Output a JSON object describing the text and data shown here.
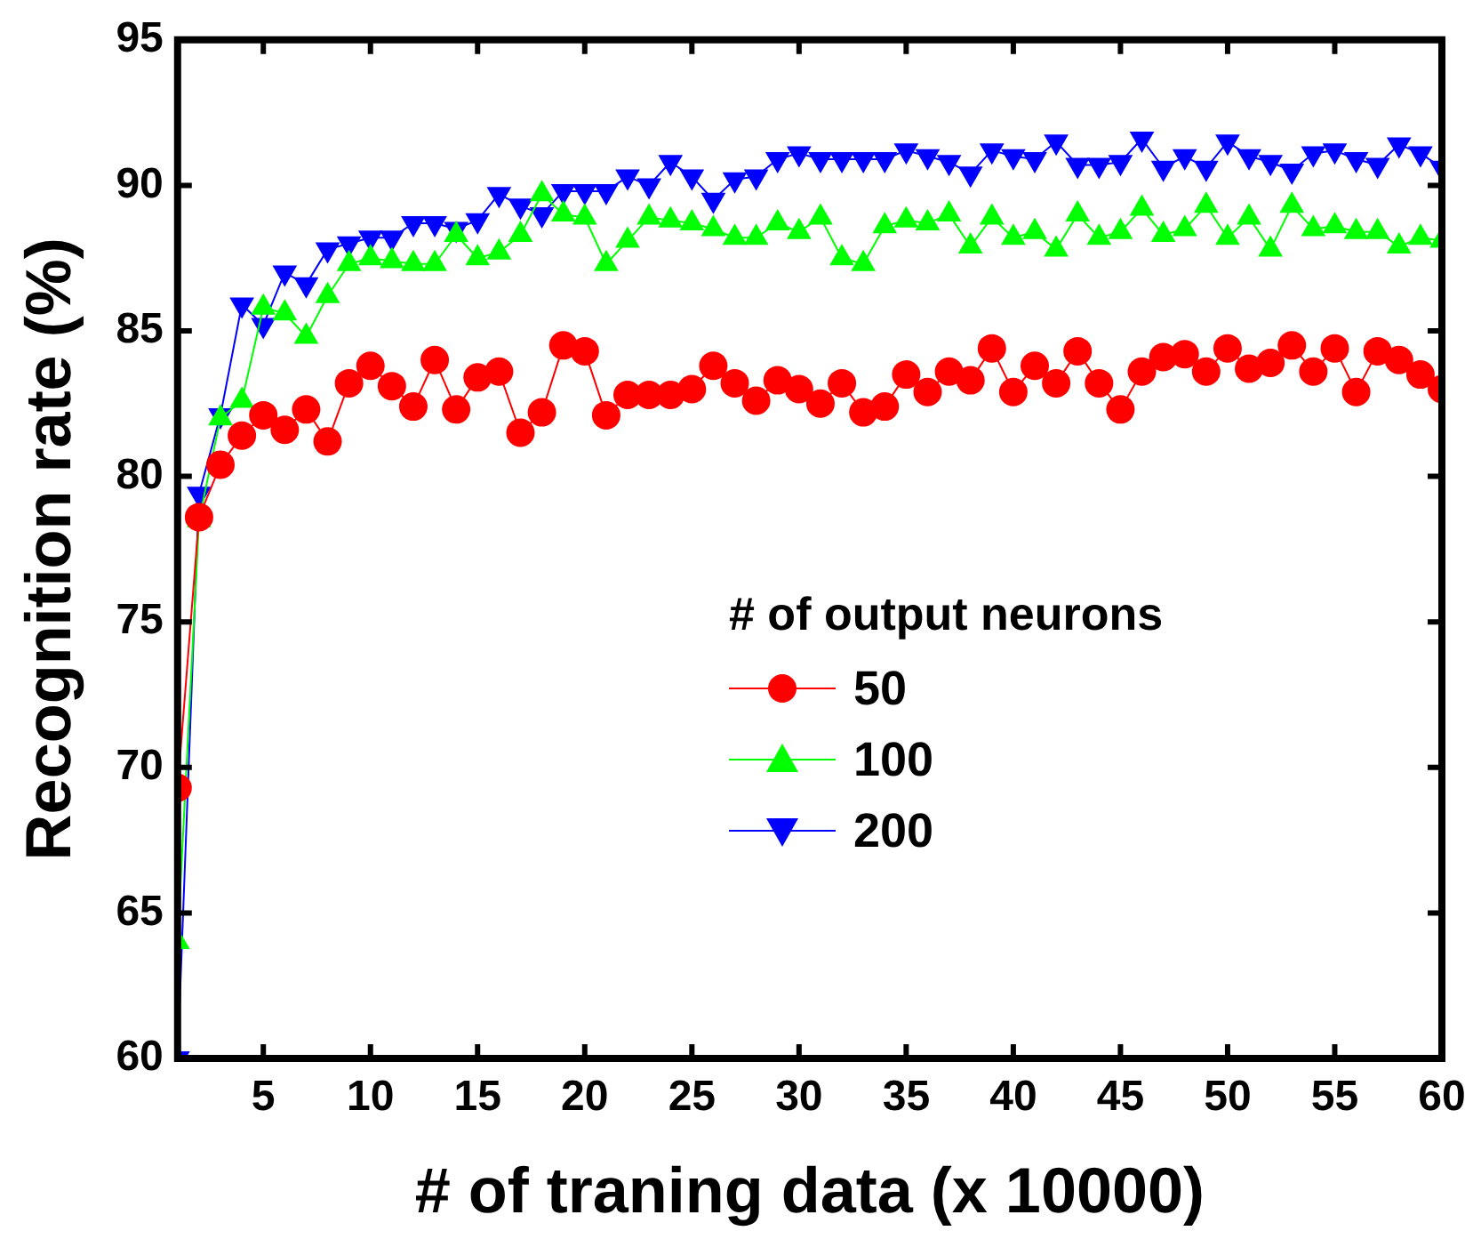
{
  "chart_data": {
    "type": "line",
    "xlabel": "# of traning data (x 10000)",
    "ylabel": "Recognition rate (%)",
    "legend_title": "# of output neurons",
    "x": [
      1,
      2,
      3,
      4,
      5,
      6,
      7,
      8,
      9,
      10,
      11,
      12,
      13,
      14,
      15,
      16,
      17,
      18,
      19,
      20,
      21,
      22,
      23,
      24,
      25,
      26,
      27,
      28,
      29,
      30,
      31,
      32,
      33,
      34,
      35,
      36,
      37,
      38,
      39,
      40,
      41,
      42,
      43,
      44,
      45,
      46,
      47,
      48,
      49,
      50,
      51,
      52,
      53,
      54,
      55,
      56,
      57,
      58,
      59,
      60
    ],
    "series": [
      {
        "name": "50",
        "color": "#ff0000",
        "marker": "circle",
        "values": [
          69.3,
          78.6,
          80.4,
          81.4,
          82.1,
          81.6,
          82.3,
          81.2,
          83.2,
          83.8,
          83.1,
          82.4,
          84.0,
          82.3,
          83.4,
          83.6,
          81.5,
          82.2,
          84.5,
          84.3,
          82.1,
          82.8,
          82.8,
          82.8,
          83.0,
          83.8,
          83.2,
          82.6,
          83.3,
          83.0,
          82.5,
          83.2,
          82.2,
          82.4,
          83.5,
          82.9,
          83.6,
          83.3,
          84.4,
          82.9,
          83.8,
          83.2,
          84.3,
          83.2,
          82.3,
          83.6,
          84.1,
          84.2,
          83.6,
          84.4,
          83.7,
          83.9,
          84.5,
          83.6,
          84.4,
          82.9,
          84.3,
          84.0,
          83.5,
          83.0
        ]
      },
      {
        "name": "100",
        "color": "#00ff00",
        "marker": "triangle",
        "values": [
          64.0,
          78.5,
          82.0,
          82.6,
          85.8,
          85.6,
          84.8,
          86.2,
          87.3,
          87.5,
          87.4,
          87.3,
          87.3,
          88.3,
          87.5,
          87.7,
          88.3,
          89.7,
          89.0,
          88.9,
          87.3,
          88.1,
          88.9,
          88.8,
          88.7,
          88.5,
          88.2,
          88.2,
          88.7,
          88.4,
          88.9,
          87.5,
          87.3,
          88.6,
          88.8,
          88.7,
          89.0,
          87.9,
          88.9,
          88.2,
          88.4,
          87.8,
          89.0,
          88.2,
          88.4,
          89.2,
          88.3,
          88.5,
          89.3,
          88.2,
          88.9,
          87.8,
          89.3,
          88.5,
          88.6,
          88.4,
          88.4,
          87.9,
          88.2,
          88.1
        ]
      },
      {
        "name": "200",
        "color": "#0000ff",
        "marker": "triangle-down",
        "values": [
          60.0,
          79.4,
          82.1,
          85.9,
          85.2,
          87.0,
          86.6,
          87.8,
          88.0,
          88.2,
          88.2,
          88.7,
          88.7,
          88.5,
          88.8,
          89.7,
          89.3,
          89.0,
          89.8,
          89.8,
          89.8,
          90.3,
          90.0,
          90.8,
          90.3,
          89.5,
          90.2,
          90.3,
          90.9,
          91.1,
          90.9,
          90.9,
          90.9,
          90.9,
          91.2,
          91.0,
          90.8,
          90.4,
          91.2,
          91.0,
          90.9,
          91.5,
          90.7,
          90.7,
          90.8,
          91.6,
          90.6,
          91.0,
          90.6,
          91.5,
          91.0,
          90.8,
          90.5,
          91.1,
          91.2,
          90.9,
          90.7,
          91.4,
          91.1,
          90.6
        ]
      }
    ],
    "xlim": [
      1,
      60
    ],
    "xticks": [
      5,
      10,
      15,
      20,
      25,
      30,
      35,
      40,
      45,
      50,
      55,
      60
    ],
    "ylim": [
      60,
      95
    ],
    "yticks": [
      60,
      65,
      70,
      75,
      80,
      85,
      90,
      95
    ],
    "grid": false,
    "legend": "right",
    "line_style": "solid"
  }
}
